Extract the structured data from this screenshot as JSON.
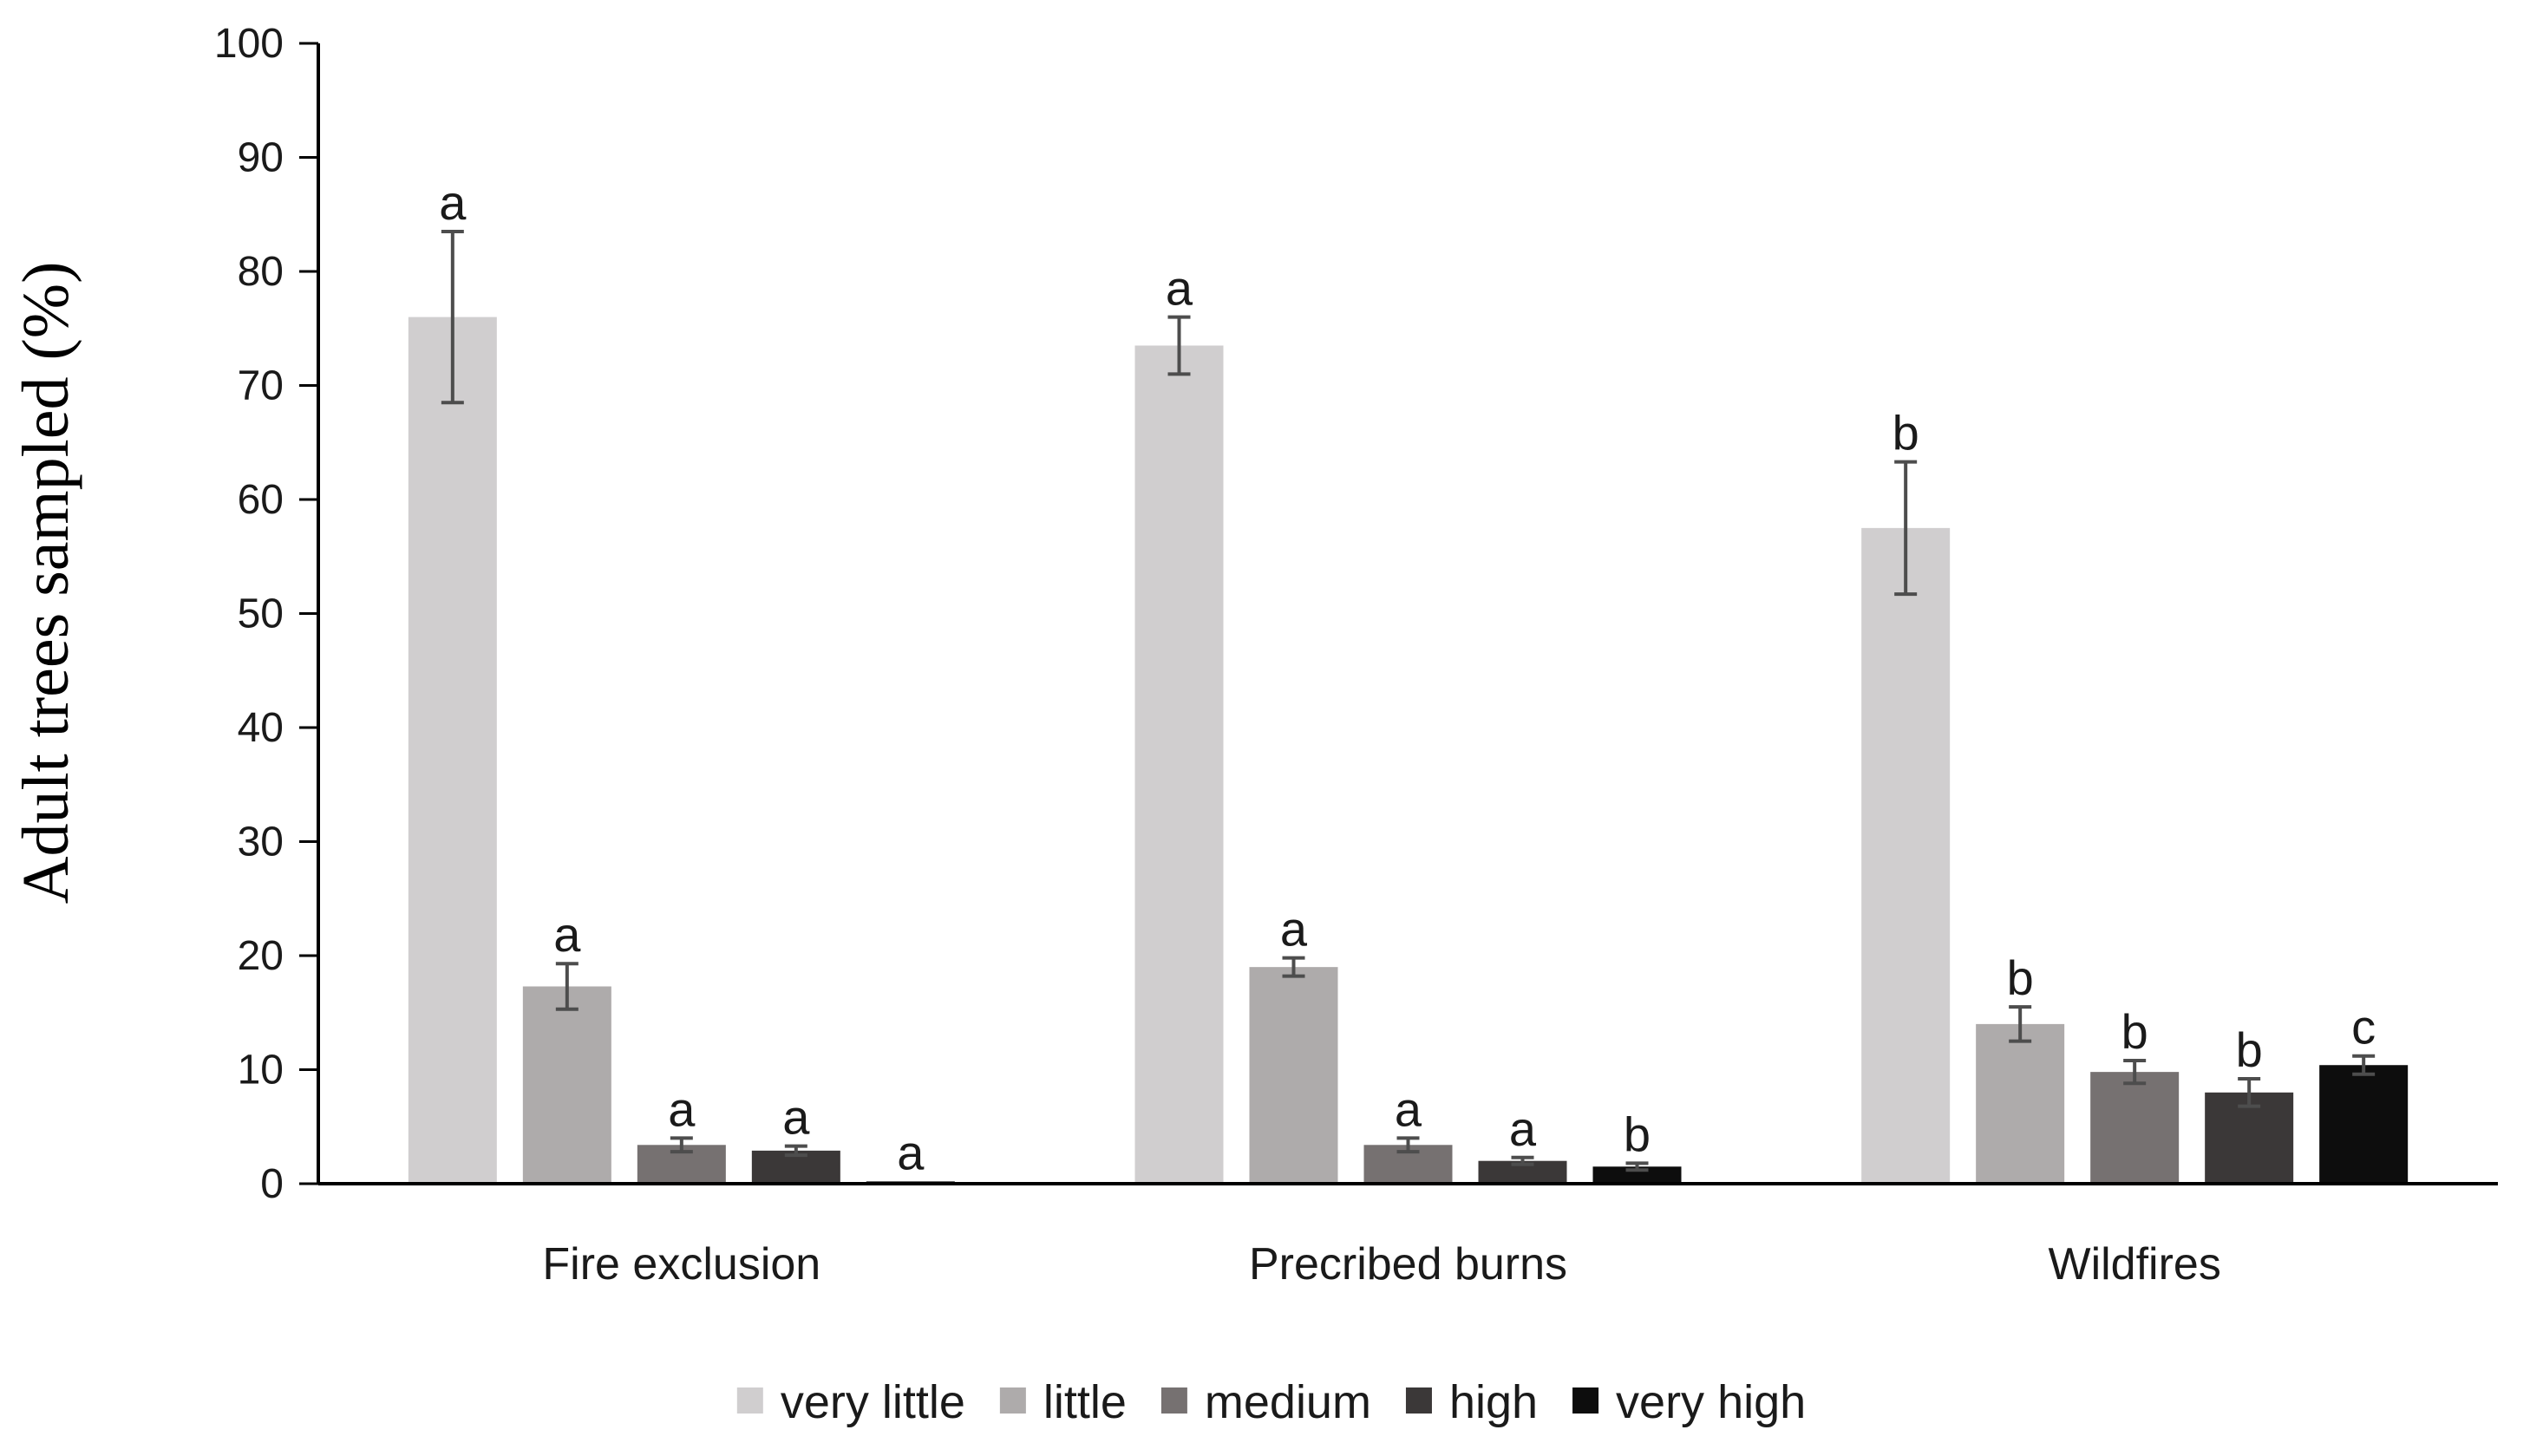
{
  "chart_data": {
    "type": "bar",
    "title": "",
    "xlabel": "",
    "ylabel": "Adult trees sampled (%)",
    "ylim": [
      0,
      100
    ],
    "yticks": [
      "0",
      "10",
      "20",
      "30",
      "40",
      "50",
      "60",
      "70",
      "80",
      "90",
      "100"
    ],
    "categories": [
      "Fire exclusion",
      "Precribed burns",
      "Wildfires"
    ],
    "legend_position": "bottom",
    "grid": false,
    "series": [
      {
        "name": "very little",
        "color": "#d0cecf",
        "values": [
          76,
          73.5,
          57.5
        ],
        "errors": [
          7.5,
          2.5,
          5.8
        ],
        "letters": [
          "a",
          "a",
          "b"
        ]
      },
      {
        "name": "little",
        "color": "#aeabab",
        "values": [
          17.3,
          19,
          14
        ],
        "errors": [
          2,
          0.8,
          1.5
        ],
        "letters": [
          "a",
          "a",
          "b"
        ]
      },
      {
        "name": "medium",
        "color": "#767171",
        "values": [
          3.4,
          3.4,
          9.8
        ],
        "errors": [
          0.6,
          0.6,
          1
        ],
        "letters": [
          "a",
          "a",
          "b"
        ]
      },
      {
        "name": "high",
        "color": "#3b3838",
        "values": [
          2.9,
          2,
          8
        ],
        "errors": [
          0.4,
          0.3,
          1.2
        ],
        "letters": [
          "a",
          "a",
          "b"
        ]
      },
      {
        "name": "very high",
        "color": "#0d0d0d",
        "values": [
          0.2,
          1.5,
          10.4
        ],
        "errors": [
          0,
          0.3,
          0.8
        ],
        "letters": [
          "a",
          "b",
          "c"
        ]
      }
    ]
  }
}
